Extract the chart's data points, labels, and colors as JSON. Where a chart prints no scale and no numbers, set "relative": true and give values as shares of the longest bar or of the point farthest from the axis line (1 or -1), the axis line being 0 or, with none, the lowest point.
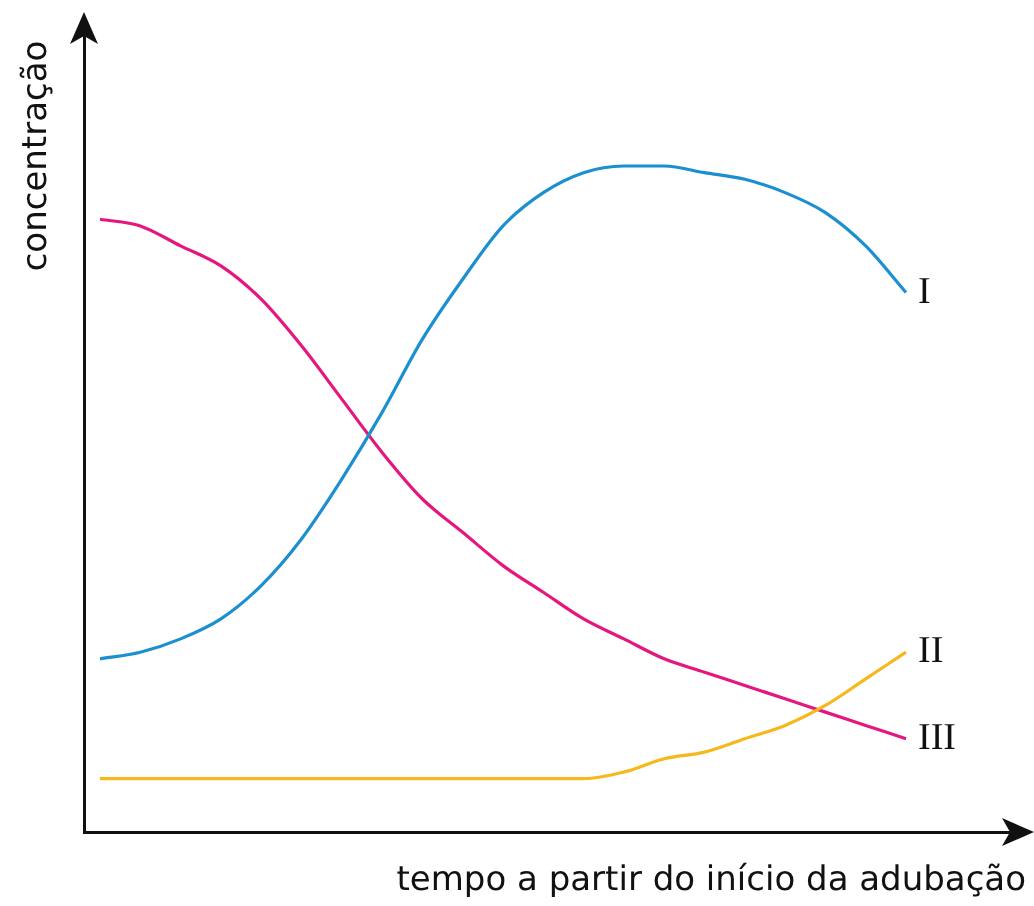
{
  "chart_data": {
    "type": "line",
    "relative": true,
    "xlabel": "tempo a partir do início da adubação",
    "ylabel": "concentração",
    "legend": false,
    "grid": false,
    "marker": "none",
    "line_style": "solid",
    "tick_labels": false,
    "categories": [
      null,
      null,
      null,
      null,
      null,
      null,
      null,
      null,
      null,
      null,
      null,
      null,
      null,
      null,
      null,
      null,
      null,
      null,
      null,
      null,
      null
    ],
    "series": [
      {
        "name": "I",
        "color": "#1b8fcf",
        "values": [
          0.26,
          0.27,
          0.29,
          0.32,
          0.37,
          0.44,
          0.53,
          0.63,
          0.74,
          0.83,
          0.91,
          0.96,
          0.99,
          1,
          1,
          0.99,
          0.98,
          0.96,
          0.93,
          0.88,
          0.81
        ]
      },
      {
        "name": "II",
        "color": "#f6b81c",
        "values": [
          0.08,
          0.08,
          0.08,
          0.08,
          0.08,
          0.08,
          0.08,
          0.08,
          0.08,
          0.08,
          0.08,
          0.08,
          0.08,
          0.09,
          0.11,
          0.12,
          0.14,
          0.16,
          0.19,
          0.23,
          0.27
        ]
      },
      {
        "name": "III",
        "color": "#e5177e",
        "values": [
          0.92,
          0.91,
          0.88,
          0.85,
          0.8,
          0.73,
          0.65,
          0.57,
          0.5,
          0.45,
          0.4,
          0.36,
          0.32,
          0.29,
          0.26,
          0.24,
          0.22,
          0.2,
          0.18,
          0.16,
          0.14
        ]
      }
    ]
  }
}
